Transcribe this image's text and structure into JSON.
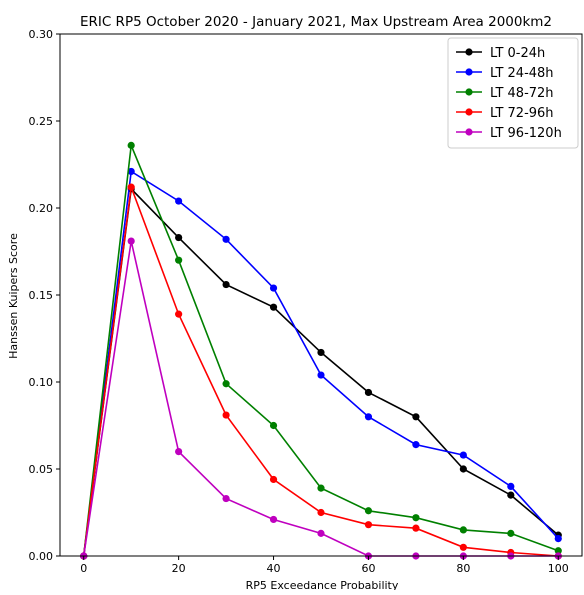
{
  "chart_data": {
    "type": "line",
    "title": "ERIC  RP5 October 2020 - January 2021, Max Upstream Area 2000km2",
    "xlabel": "RP5 Exceedance Probability",
    "ylabel": "Hanssen Kuipers Score",
    "xlim": [
      -5,
      105
    ],
    "ylim": [
      0,
      0.3
    ],
    "x_ticks": [
      0,
      20,
      40,
      60,
      80,
      100
    ],
    "x_tick_labels": [
      "0",
      "20",
      "40",
      "60",
      "80",
      "100"
    ],
    "y_ticks": [
      0,
      0.05,
      0.1,
      0.15,
      0.2,
      0.25,
      0.3
    ],
    "y_tick_labels": [
      "0.00",
      "0.05",
      "0.10",
      "0.15",
      "0.20",
      "0.25",
      "0.30"
    ],
    "grid": false,
    "legend_position": "top-right",
    "x": [
      0,
      10,
      20,
      30,
      40,
      50,
      60,
      70,
      80,
      90,
      100
    ],
    "series": [
      {
        "name": "LT 0-24h",
        "color": "#000000",
        "values": [
          0.0,
          0.211,
          0.183,
          0.156,
          0.143,
          0.117,
          0.094,
          0.08,
          0.05,
          0.035,
          0.012
        ]
      },
      {
        "name": "LT 24-48h",
        "color": "#0000ff",
        "values": [
          0.0,
          0.221,
          0.204,
          0.182,
          0.154,
          0.104,
          0.08,
          0.064,
          0.058,
          0.04,
          0.01
        ]
      },
      {
        "name": "LT 48-72h",
        "color": "#008000",
        "values": [
          0.0,
          0.236,
          0.17,
          0.099,
          0.075,
          0.039,
          0.026,
          0.022,
          0.015,
          0.013,
          0.003
        ]
      },
      {
        "name": "LT 72-96h",
        "color": "#ff0000",
        "values": [
          0.0,
          0.212,
          0.139,
          0.081,
          0.044,
          0.025,
          0.018,
          0.016,
          0.005,
          0.002,
          0.0
        ]
      },
      {
        "name": "LT 96-120h",
        "color": "#bf00bf",
        "values": [
          0.0,
          0.181,
          0.06,
          0.033,
          0.021,
          0.013,
          0.0,
          0.0,
          0.0,
          0.0,
          0.0
        ]
      }
    ]
  }
}
